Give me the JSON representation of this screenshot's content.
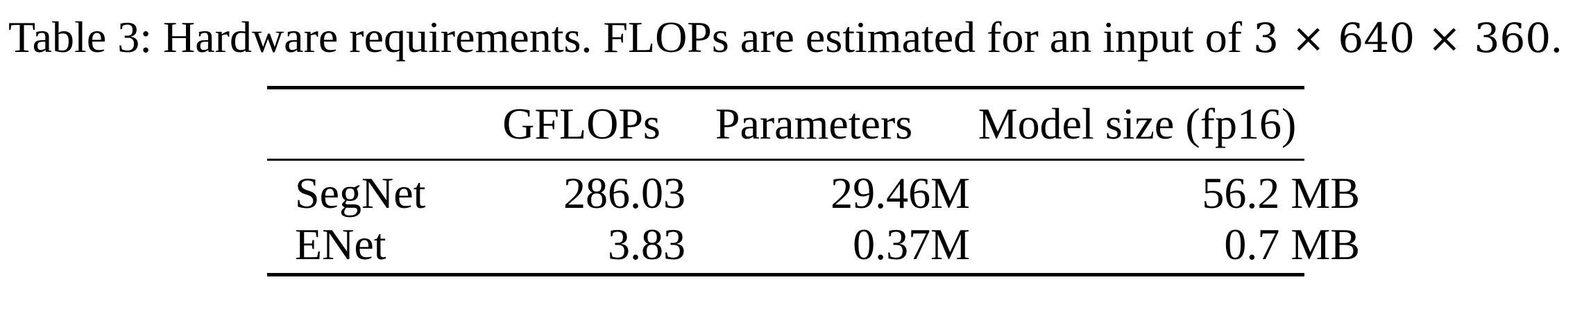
{
  "caption": {
    "label": "Table 3:",
    "text": "Hardware requirements. FLOPs are estimated for an input of",
    "dims": "3 × 640 × 360",
    "end": "."
  },
  "table": {
    "headers": [
      "",
      "GFLOPs",
      "Parameters",
      "Model size (fp16)"
    ],
    "rows": [
      [
        "SegNet",
        "286.03",
        "29.46M",
        "56.2 MB"
      ],
      [
        "ENet",
        "3.83",
        "0.37M",
        "0.7 MB"
      ]
    ]
  }
}
